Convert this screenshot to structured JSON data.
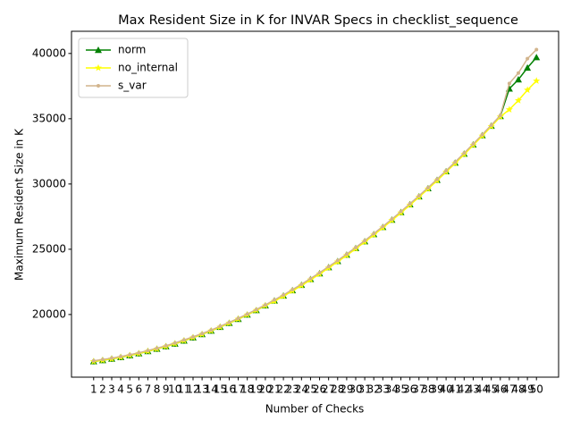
{
  "chart_data": {
    "type": "line",
    "title": "Max Resident Size in K for INVAR Specs in checklist_sequence",
    "xlabel": "Number of Checks",
    "ylabel": "Maximum Resident Size in K",
    "x": [
      1,
      2,
      3,
      4,
      5,
      6,
      7,
      8,
      9,
      10,
      11,
      12,
      13,
      14,
      15,
      16,
      17,
      18,
      19,
      20,
      21,
      22,
      23,
      24,
      25,
      26,
      27,
      28,
      29,
      30,
      31,
      32,
      33,
      34,
      35,
      36,
      37,
      38,
      39,
      40,
      41,
      42,
      43,
      44,
      45,
      46,
      47,
      48,
      49,
      50
    ],
    "xlim": [
      -1.45,
      52.45
    ],
    "xticks": [
      1,
      2,
      3,
      4,
      5,
      6,
      7,
      8,
      9,
      10,
      11,
      12,
      13,
      14,
      15,
      16,
      17,
      18,
      19,
      20,
      21,
      22,
      23,
      24,
      25,
      26,
      27,
      28,
      29,
      30,
      31,
      32,
      33,
      34,
      35,
      36,
      37,
      38,
      39,
      40,
      41,
      42,
      43,
      44,
      45,
      46,
      47,
      48,
      49,
      50
    ],
    "ylim": [
      15200,
      41700
    ],
    "yticks": [
      20000,
      25000,
      30000,
      35000,
      40000
    ],
    "legend": "upper left",
    "series": [
      {
        "name": "norm",
        "color": "#008000",
        "marker": "triangle",
        "values": [
          16400,
          16490,
          16600,
          16720,
          16860,
          17010,
          17180,
          17360,
          17550,
          17760,
          17990,
          18230,
          18480,
          18750,
          19040,
          19340,
          19650,
          19980,
          20320,
          20680,
          21060,
          21440,
          21850,
          22260,
          22700,
          23140,
          23610,
          24080,
          24570,
          25080,
          25600,
          26140,
          26690,
          27250,
          27830,
          28430,
          29040,
          29660,
          30300,
          30960,
          31620,
          32310,
          33010,
          33720,
          34450,
          35190,
          37300,
          38000,
          38900,
          39700
        ]
      },
      {
        "name": "no_internal",
        "color": "#ffff00",
        "marker": "star",
        "values": [
          16400,
          16490,
          16600,
          16720,
          16860,
          17010,
          17180,
          17360,
          17550,
          17760,
          17990,
          18230,
          18480,
          18750,
          19040,
          19340,
          19650,
          19980,
          20320,
          20680,
          21020,
          21400,
          21810,
          22220,
          22660,
          23100,
          23570,
          24040,
          24530,
          25040,
          25560,
          26100,
          26650,
          27210,
          27790,
          28390,
          29000,
          29620,
          30260,
          30920,
          31580,
          32270,
          32970,
          33680,
          34410,
          35150,
          35700,
          36400,
          37200,
          37900
        ]
      },
      {
        "name": "s_var",
        "color": "#d2b48c",
        "marker": "circle",
        "values": [
          16460,
          16550,
          16660,
          16780,
          16920,
          17070,
          17240,
          17420,
          17610,
          17820,
          18050,
          18290,
          18540,
          18810,
          19100,
          19400,
          19710,
          20040,
          20380,
          20740,
          21120,
          21500,
          21910,
          22320,
          22760,
          23200,
          23670,
          24140,
          24630,
          25140,
          25660,
          26200,
          26750,
          27310,
          27890,
          28490,
          29100,
          29720,
          30360,
          31020,
          31680,
          32370,
          33070,
          33780,
          34510,
          35250,
          37700,
          38500,
          39600,
          40300
        ]
      }
    ]
  }
}
